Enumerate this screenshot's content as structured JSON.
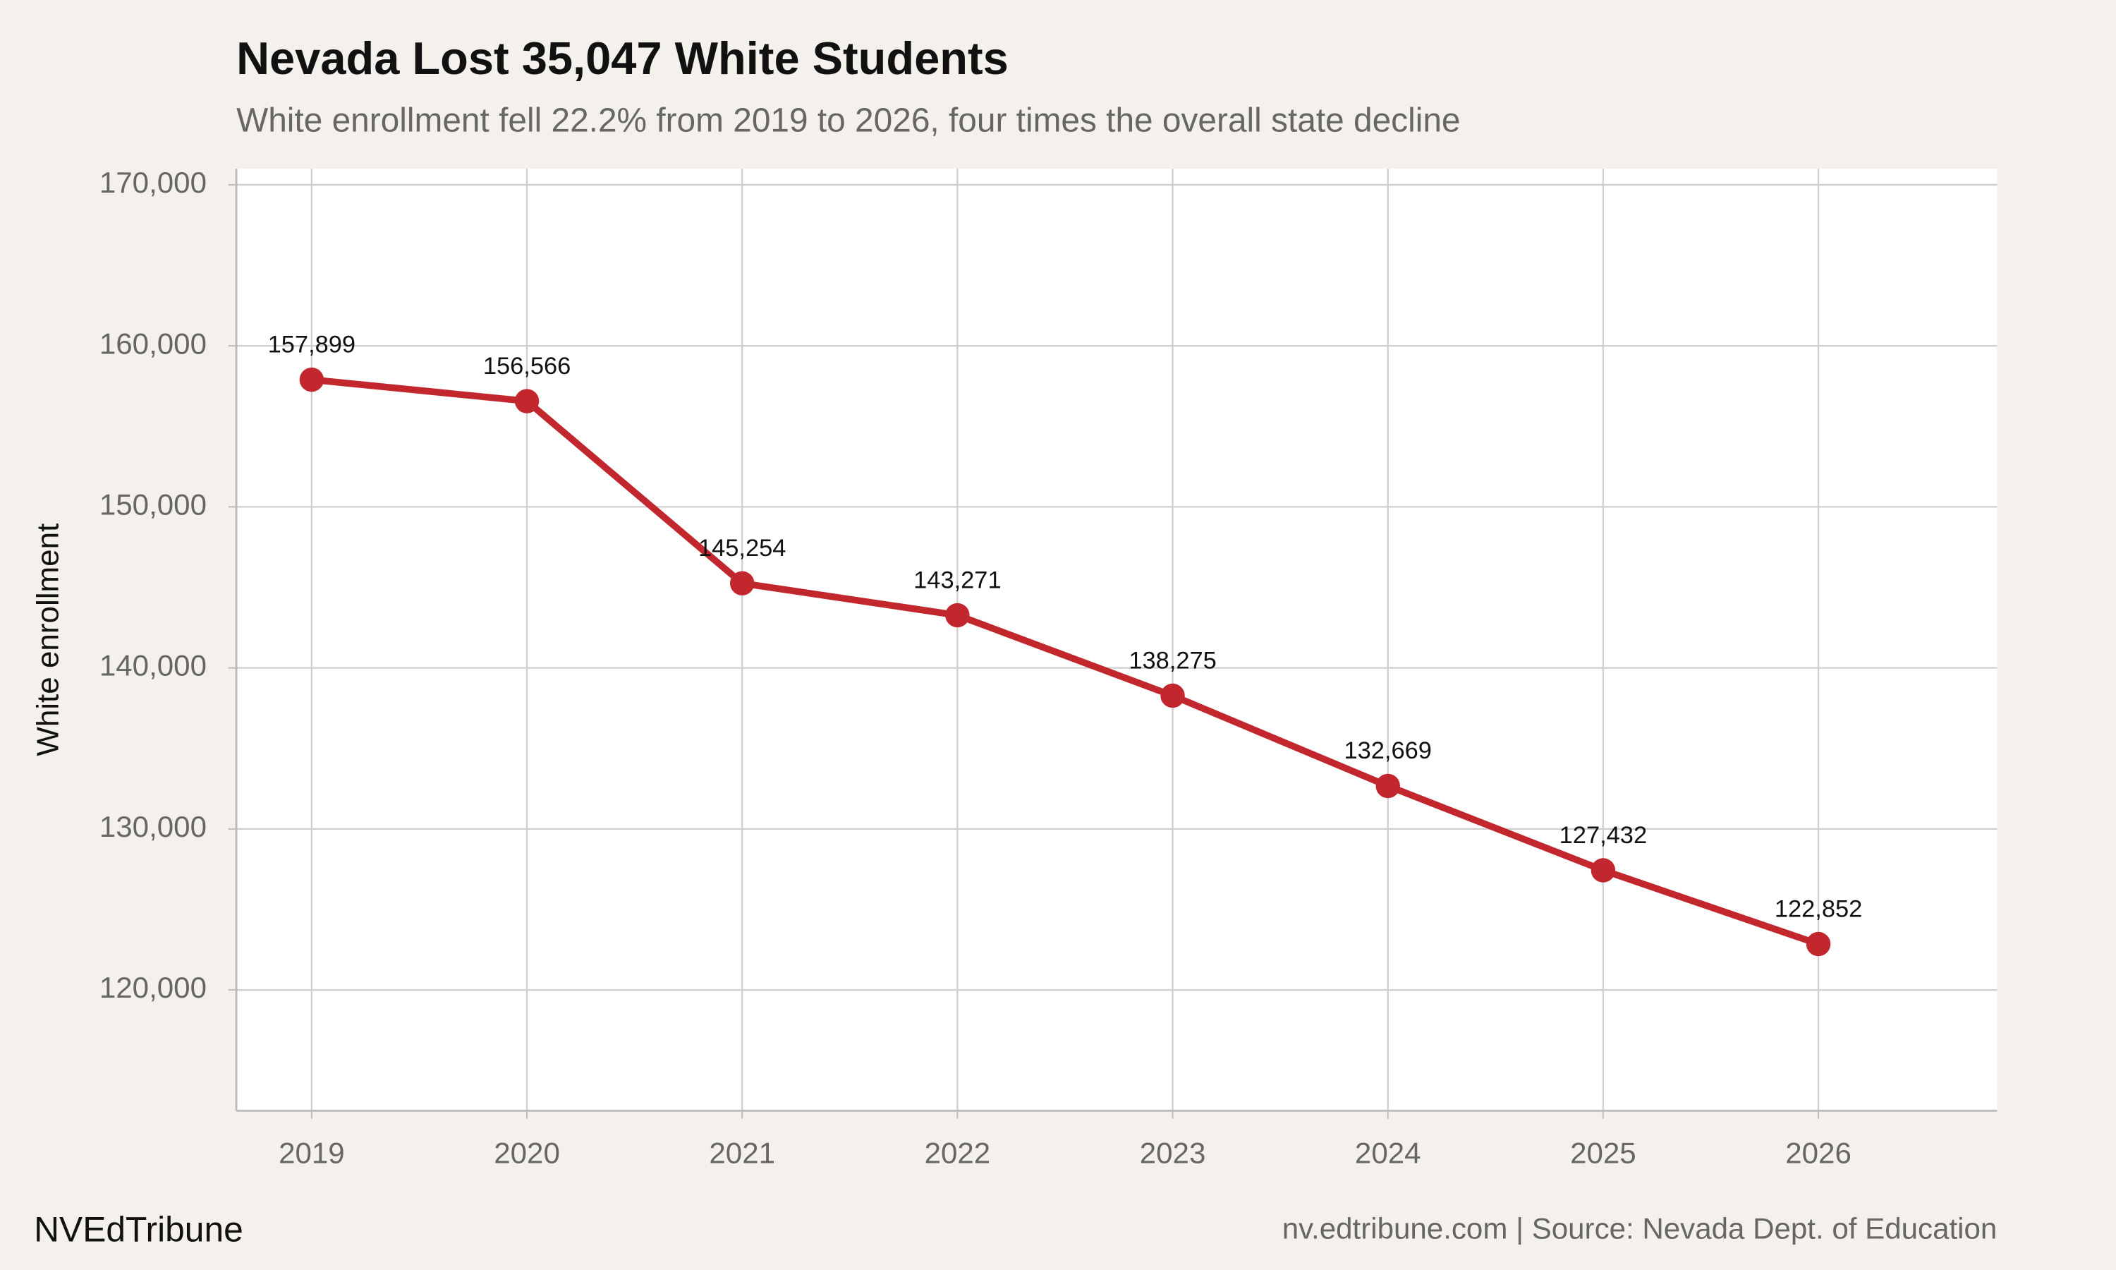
{
  "chart_data": {
    "type": "line",
    "title": "Nevada Lost 35,047 White Students",
    "subtitle": "White enrollment fell 22.2% from 2019 to 2026, four times the overall state decline",
    "y_label": "White enrollment",
    "footer_left": "NVEdTribune",
    "footer_right": "nv.edtribune.com | Source: Nevada Dept. of Education",
    "x": [
      2019,
      2020,
      2021,
      2022,
      2023,
      2024,
      2025,
      2026
    ],
    "series": [
      {
        "name": "White enrollment",
        "color": "#c1272d",
        "values": [
          157899,
          156566,
          145254,
          143271,
          138275,
          132669,
          127432,
          122852
        ],
        "value_labels": [
          "157,899",
          "156,566",
          "145,254",
          "143,271",
          "138,275",
          "132,669",
          "127,432",
          "122,852"
        ]
      }
    ],
    "xlim": [
      2018.65,
      2026.83
    ],
    "xticks": [
      2019,
      2020,
      2021,
      2022,
      2023,
      2024,
      2025,
      2026
    ],
    "ylim": [
      112500,
      171000
    ],
    "yticks": [
      {
        "value": 120000,
        "label": "120,000"
      },
      {
        "value": 130000,
        "label": "130,000"
      },
      {
        "value": 140000,
        "label": "140,000"
      },
      {
        "value": 150000,
        "label": "150,000"
      },
      {
        "value": 160000,
        "label": "160,000"
      },
      {
        "value": 170000,
        "label": "170,000"
      }
    ],
    "grid": true
  }
}
